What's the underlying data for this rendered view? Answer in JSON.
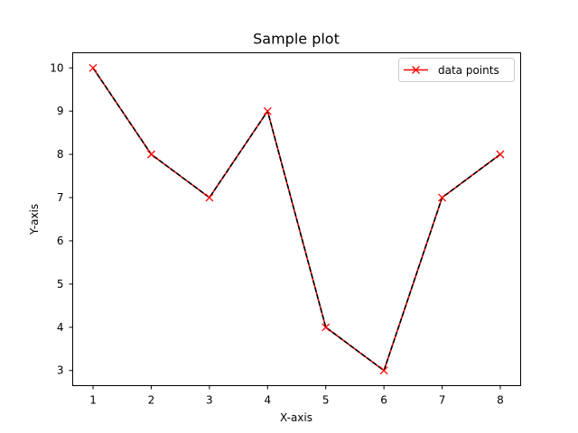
{
  "colors": {
    "series_line": "#ff0000",
    "overlay_line": "#000000",
    "marker": "#ff0000",
    "axes": "#000000",
    "background": "#ffffff",
    "legend_border": "#cccccc"
  },
  "chart_data": {
    "type": "line",
    "title": "Sample plot",
    "xlabel": "X-axis",
    "ylabel": "Y-axis",
    "x": [
      1,
      2,
      3,
      4,
      5,
      6,
      7,
      8
    ],
    "series": [
      {
        "name": "data points",
        "values": [
          10,
          8,
          7,
          9,
          4,
          3,
          7,
          8
        ],
        "marker": "x",
        "color": "#ff0000"
      }
    ],
    "overlay_line": {
      "values": [
        10,
        8,
        7,
        9,
        4,
        3,
        7,
        8
      ],
      "color": "#000000",
      "style": "dashed"
    },
    "xticks": [
      "1",
      "2",
      "3",
      "4",
      "5",
      "6",
      "7",
      "8"
    ],
    "yticks": [
      "3",
      "4",
      "5",
      "6",
      "7",
      "8",
      "9",
      "10"
    ],
    "xlim": [
      0.65,
      8.35
    ],
    "ylim": [
      2.65,
      10.35
    ],
    "grid": false,
    "legend_position": "top-right"
  }
}
